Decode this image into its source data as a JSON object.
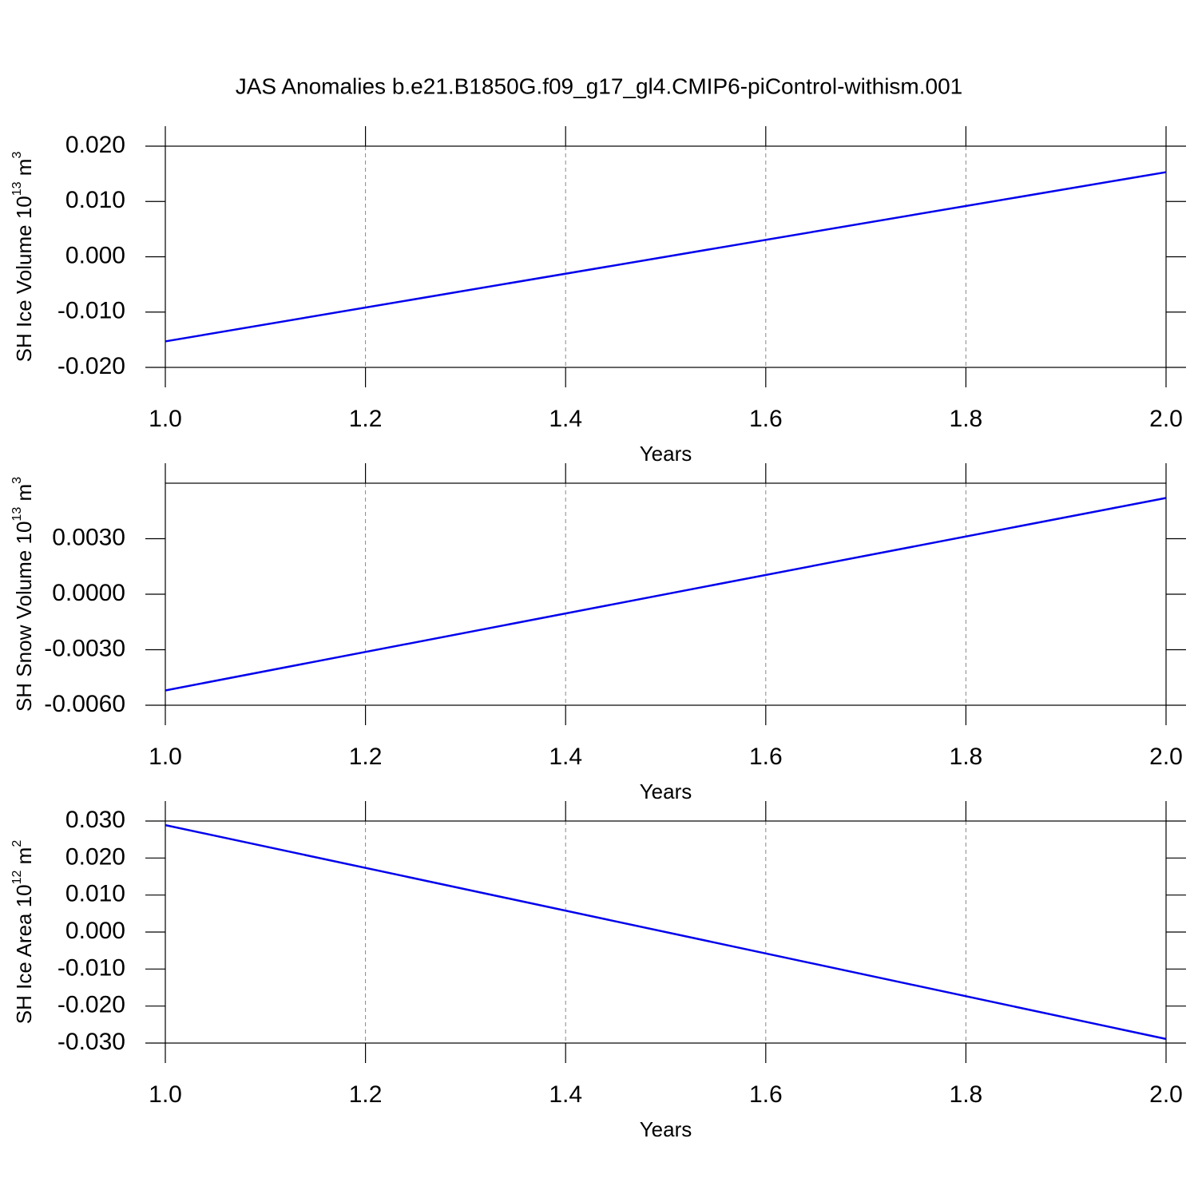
{
  "title": "JAS Anomalies b.e21.B1850G.f09_g17_gl4.CMIP6-piControl-withism.001",
  "chart_data": [
    {
      "type": "line",
      "ylabel": [
        "SH Ice Volume 10",
        "13",
        " m",
        "3"
      ],
      "xlabel": "Years",
      "x": [
        1.0,
        2.0
      ],
      "series": [
        {
          "color": "#0000ee",
          "values": [
            -0.0153,
            0.0153
          ]
        }
      ],
      "xlim": [
        1.0,
        2.0
      ],
      "xticks": [
        {
          "value": 1,
          "label": "1.0"
        },
        1.2,
        1.4,
        1.6,
        1.8,
        {
          "value": 2,
          "label": "2.0"
        }
      ],
      "ylim": [
        -0.02,
        0.02
      ],
      "yticks": [
        {
          "value": -0.02,
          "label": "-0.020"
        },
        {
          "value": -0.01,
          "label": "-0.010"
        },
        {
          "value": 0,
          "label": "0.000"
        },
        {
          "value": 0.01,
          "label": "0.010"
        },
        {
          "value": 0.02,
          "label": "0.020"
        }
      ],
      "grid": true
    },
    {
      "type": "line",
      "ylabel": [
        "SH Snow Volume 10",
        "13",
        " m",
        "3"
      ],
      "xlabel": "Years",
      "x": [
        1.0,
        2.0
      ],
      "series": [
        {
          "color": "#0000ee",
          "values": [
            -0.0052,
            0.0052
          ]
        }
      ],
      "xlim": [
        1.0,
        2.0
      ],
      "xticks": [
        {
          "value": 1,
          "label": "1.0"
        },
        1.2,
        1.4,
        1.6,
        1.8,
        {
          "value": 2,
          "label": "2.0"
        }
      ],
      "ylim": [
        -0.006,
        0.006
      ],
      "yticks": [
        {
          "value": -0.006,
          "label": "-0.0060"
        },
        {
          "value": -0.003,
          "label": "-0.0030"
        },
        {
          "value": 0,
          "label": "0.0000"
        },
        {
          "value": 0.003,
          "label": "0.0030"
        }
      ],
      "grid": true
    },
    {
      "type": "line",
      "ylabel": [
        "SH Ice Area 10",
        "12",
        " m",
        "2"
      ],
      "xlabel": "Years",
      "x": [
        1.0,
        2.0
      ],
      "series": [
        {
          "color": "#0000ee",
          "values": [
            0.0289,
            -0.0289
          ]
        }
      ],
      "xlim": [
        1.0,
        2.0
      ],
      "xticks": [
        {
          "value": 1,
          "label": "1.0"
        },
        1.2,
        1.4,
        1.6,
        1.8,
        {
          "value": 2,
          "label": "2.0"
        }
      ],
      "ylim": [
        -0.03,
        0.03
      ],
      "yticks": [
        {
          "value": -0.03,
          "label": "-0.030"
        },
        {
          "value": -0.02,
          "label": "-0.020"
        },
        {
          "value": -0.01,
          "label": "-0.010"
        },
        {
          "value": 0,
          "label": "0.000"
        },
        {
          "value": 0.01,
          "label": "0.010"
        },
        {
          "value": 0.02,
          "label": "0.020"
        },
        {
          "value": 0.03,
          "label": "0.030"
        }
      ],
      "grid": true
    }
  ]
}
